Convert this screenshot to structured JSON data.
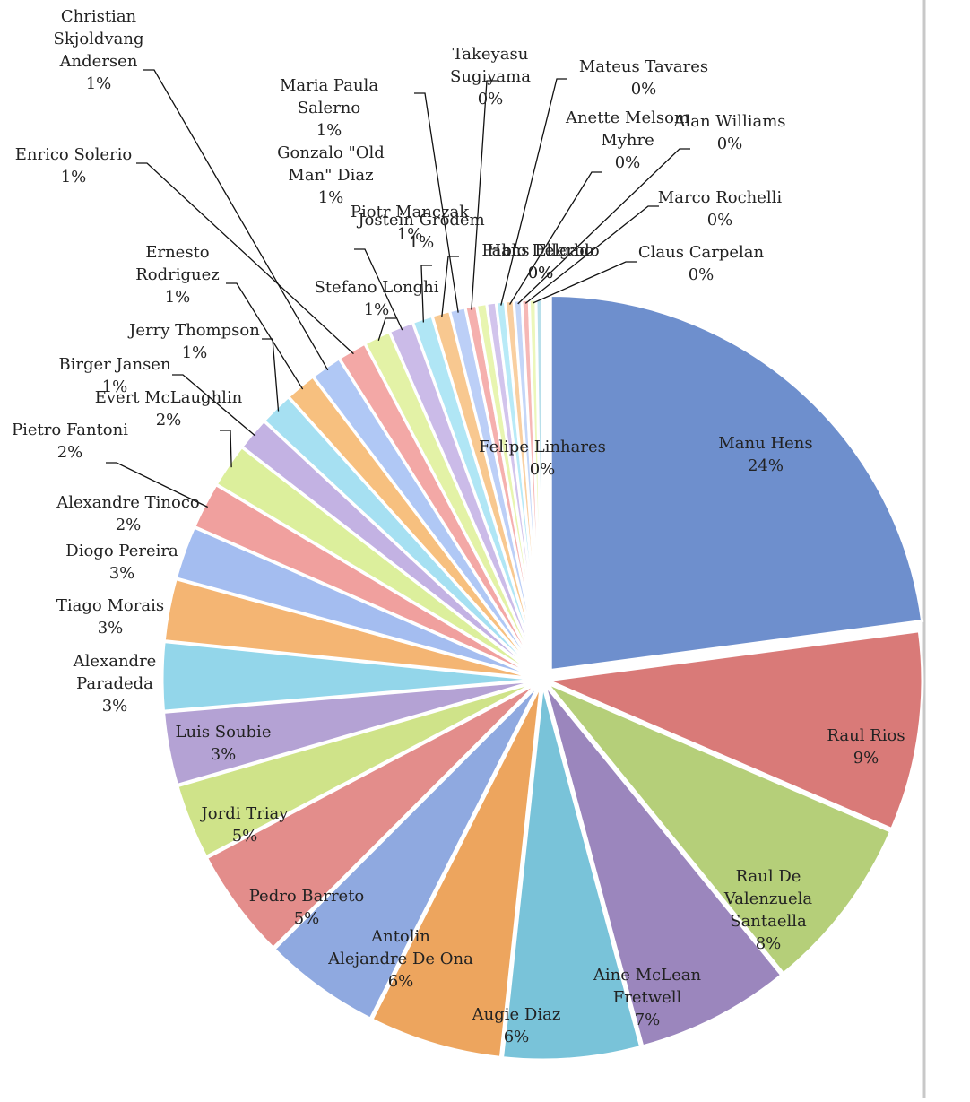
{
  "chart_data": {
    "type": "pie",
    "title": "",
    "slices": [
      {
        "name": "Manu Hens",
        "label": "24%",
        "value": 24.0,
        "color": "#6e8fcd"
      },
      {
        "name": "Raul Rios",
        "label": "9%",
        "value": 9.0,
        "color": "#d97a78"
      },
      {
        "name": "Raul De Valenzuela Santaella",
        "label": "8%",
        "value": 8.0,
        "color": "#b5cf79"
      },
      {
        "name": "Aine McLean Fretwell",
        "label": "7%",
        "value": 7.0,
        "color": "#9b86bd"
      },
      {
        "name": "Augie Diaz",
        "label": "6%",
        "value": 6.2,
        "color": "#79c3d9"
      },
      {
        "name": "Antolin Alejandre De Ona",
        "label": "6%",
        "value": 6.0,
        "color": "#eda55e"
      },
      {
        "name": "Pedro Barreto",
        "label": "5%",
        "value": 5.3,
        "color": "#8fa9e0"
      },
      {
        "name": "Jordi Triay",
        "label": "5%",
        "value": 5.0,
        "color": "#e38d8b"
      },
      {
        "name": "Luis Soubie",
        "label": "3%",
        "value": 3.4,
        "color": "#cfe389"
      },
      {
        "name": "Alexandre Paradeda",
        "label": "3%",
        "value": 3.3,
        "color": "#b4a2d4"
      },
      {
        "name": "Tiago Morais",
        "label": "3%",
        "value": 3.1,
        "color": "#93d6ea"
      },
      {
        "name": "Diogo Pereira",
        "label": "3%",
        "value": 2.8,
        "color": "#f4b573"
      },
      {
        "name": "Alexandre Tinoco",
        "label": "2%",
        "value": 2.4,
        "color": "#a4bdf0"
      },
      {
        "name": "Pietro Fantoni",
        "label": "2%",
        "value": 2.1,
        "color": "#f0a09e"
      },
      {
        "name": "Evert McLaughlin",
        "label": "2%",
        "value": 2.0,
        "color": "#dcef9c"
      },
      {
        "name": "Birger Jansen",
        "label": "1%",
        "value": 1.5,
        "color": "#c3b2e3"
      },
      {
        "name": "Jerry Thompson",
        "label": "1%",
        "value": 1.5,
        "color": "#a6e0f2"
      },
      {
        "name": "Ernesto Rodriguez",
        "label": "1%",
        "value": 1.4,
        "color": "#f7c07f"
      },
      {
        "name": "Christian Skjoldvang Andersen",
        "label": "1%",
        "value": 1.4,
        "color": "#b0c8f5"
      },
      {
        "name": "Enrico Solerio",
        "label": "1%",
        "value": 1.3,
        "color": "#f3a8a6"
      },
      {
        "name": "Stefano Longhi",
        "label": "1%",
        "value": 1.2,
        "color": "#e3f2a6"
      },
      {
        "name": "Gonzalo \"Old Man\" Diaz",
        "label": "1%",
        "value": 1.1,
        "color": "#cbbbe8"
      },
      {
        "name": "Piotr Manczak",
        "label": "1%",
        "value": 0.9,
        "color": "#b0e6f5"
      },
      {
        "name": "Jostein Grodem",
        "label": "1%",
        "value": 0.8,
        "color": "#f8c890"
      },
      {
        "name": "Maria Paula Salerno",
        "label": "1%",
        "value": 0.7,
        "color": "#bccff7"
      },
      {
        "name": "Takeyasu Sugiyama",
        "label": "0%",
        "value": 0.5,
        "color": "#f5b0ae"
      },
      {
        "name": "Pablo Delgado",
        "label": "0%",
        "value": 0.45,
        "color": "#e8f5b0"
      },
      {
        "name": "Hans Ellerbo",
        "label": "0%",
        "value": 0.42,
        "color": "#d2c4ec"
      },
      {
        "name": "Mateus Tavares",
        "label": "0%",
        "value": 0.4,
        "color": "#b8eaf7"
      },
      {
        "name": "Anette Melsom Myhre",
        "label": "0%",
        "value": 0.38,
        "color": "#f9cfa0"
      },
      {
        "name": "Alan Williams",
        "label": "0%",
        "value": 0.35,
        "color": "#c4d6f8"
      },
      {
        "name": "Marco Rochelli",
        "label": "0%",
        "value": 0.33,
        "color": "#f6b8b6"
      },
      {
        "name": "Claus Carpelan",
        "label": "0%",
        "value": 0.3,
        "color": "#ecf7ba"
      },
      {
        "name": "Felipe Linhares",
        "label": "0%",
        "value": 0.28,
        "color": "#b8dfea"
      }
    ]
  }
}
